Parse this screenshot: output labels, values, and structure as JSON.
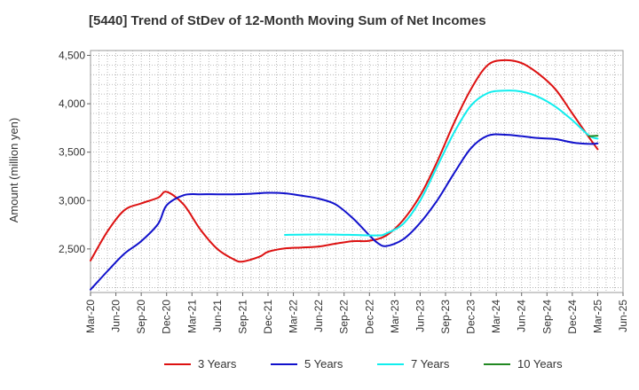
{
  "chart_data": {
    "type": "line",
    "title": "[5440]  Trend of StDev of 12-Month Moving Sum of Net Incomes",
    "ylabel": "Amount (million yen)",
    "xlabel": "",
    "ylim": [
      2050,
      4550
    ],
    "yticks": [
      2500,
      3000,
      3500,
      4000,
      4500
    ],
    "ytick_labels": [
      "2,500",
      "3,000",
      "3,500",
      "4,000",
      "4,500"
    ],
    "xticks": [
      "Mar-20",
      "Jun-20",
      "Sep-20",
      "Dec-20",
      "Mar-21",
      "Jun-21",
      "Sep-21",
      "Dec-21",
      "Mar-22",
      "Jun-22",
      "Sep-22",
      "Dec-22",
      "Mar-23",
      "Jun-23",
      "Sep-23",
      "Dec-23",
      "Mar-24",
      "Jun-24",
      "Sep-24",
      "Dec-24",
      "Mar-25",
      "Jun-25"
    ],
    "grid": true,
    "legend_position": "bottom",
    "series": [
      {
        "name": "3 Years",
        "color": "#dd1111",
        "points": [
          [
            "Mar-20",
            2380
          ],
          [
            "May-20",
            2680
          ],
          [
            "Jul-20",
            2900
          ],
          [
            "Sep-20",
            2970
          ],
          [
            "Nov-20",
            3030
          ],
          [
            "Dec-20",
            3090
          ],
          [
            "Feb-21",
            2960
          ],
          [
            "Apr-21",
            2700
          ],
          [
            "Jun-21",
            2500
          ],
          [
            "Aug-21",
            2390
          ],
          [
            "Sep-21",
            2370
          ],
          [
            "Nov-21",
            2420
          ],
          [
            "Dec-21",
            2470
          ],
          [
            "Feb-22",
            2505
          ],
          [
            "Apr-22",
            2515
          ],
          [
            "Jun-22",
            2525
          ],
          [
            "Aug-22",
            2555
          ],
          [
            "Oct-22",
            2580
          ],
          [
            "Dec-22",
            2585
          ],
          [
            "Feb-23",
            2640
          ],
          [
            "Apr-23",
            2800
          ],
          [
            "Jun-23",
            3050
          ],
          [
            "Aug-23",
            3400
          ],
          [
            "Oct-23",
            3800
          ],
          [
            "Dec-23",
            4150
          ],
          [
            "Feb-24",
            4400
          ],
          [
            "Apr-24",
            4450
          ],
          [
            "Jun-24",
            4420
          ],
          [
            "Aug-24",
            4310
          ],
          [
            "Oct-24",
            4150
          ],
          [
            "Dec-24",
            3900
          ],
          [
            "Feb-25",
            3650
          ],
          [
            "Mar-25",
            3530
          ]
        ]
      },
      {
        "name": "5 Years",
        "color": "#1111cc",
        "points": [
          [
            "Mar-20",
            2080
          ],
          [
            "May-20",
            2270
          ],
          [
            "Jul-20",
            2450
          ],
          [
            "Sep-20",
            2580
          ],
          [
            "Nov-20",
            2760
          ],
          [
            "Dec-20",
            2950
          ],
          [
            "Feb-21",
            3055
          ],
          [
            "Apr-21",
            3065
          ],
          [
            "Jun-21",
            3065
          ],
          [
            "Aug-21",
            3065
          ],
          [
            "Oct-21",
            3070
          ],
          [
            "Dec-21",
            3080
          ],
          [
            "Feb-22",
            3075
          ],
          [
            "Apr-22",
            3050
          ],
          [
            "Jun-22",
            3020
          ],
          [
            "Aug-22",
            2960
          ],
          [
            "Oct-22",
            2820
          ],
          [
            "Dec-22",
            2640
          ],
          [
            "Jan-23",
            2560
          ],
          [
            "Feb-23",
            2530
          ],
          [
            "Apr-23",
            2600
          ],
          [
            "Jun-23",
            2770
          ],
          [
            "Aug-23",
            3000
          ],
          [
            "Oct-23",
            3280
          ],
          [
            "Dec-23",
            3540
          ],
          [
            "Feb-24",
            3670
          ],
          [
            "Apr-24",
            3680
          ],
          [
            "Jun-24",
            3665
          ],
          [
            "Aug-24",
            3645
          ],
          [
            "Oct-24",
            3635
          ],
          [
            "Dec-24",
            3600
          ],
          [
            "Feb-25",
            3585
          ],
          [
            "Mar-25",
            3590
          ]
        ]
      },
      {
        "name": "7 Years",
        "color": "#11eeee",
        "points": [
          [
            "Feb-22",
            2645
          ],
          [
            "Jun-22",
            2650
          ],
          [
            "Oct-22",
            2645
          ],
          [
            "Jan-23",
            2640
          ],
          [
            "Feb-23",
            2660
          ],
          [
            "Apr-23",
            2760
          ],
          [
            "Jun-23",
            3000
          ],
          [
            "Aug-23",
            3350
          ],
          [
            "Oct-23",
            3700
          ],
          [
            "Dec-23",
            3980
          ],
          [
            "Feb-24",
            4110
          ],
          [
            "Apr-24",
            4135
          ],
          [
            "Jun-24",
            4125
          ],
          [
            "Aug-24",
            4070
          ],
          [
            "Oct-24",
            3970
          ],
          [
            "Dec-24",
            3830
          ],
          [
            "Feb-25",
            3670
          ],
          [
            "Mar-25",
            3640
          ]
        ]
      },
      {
        "name": "10 Years",
        "color": "#228822",
        "points": [
          [
            "Feb-25",
            3665
          ],
          [
            "Mar-25",
            3670
          ]
        ]
      }
    ]
  }
}
